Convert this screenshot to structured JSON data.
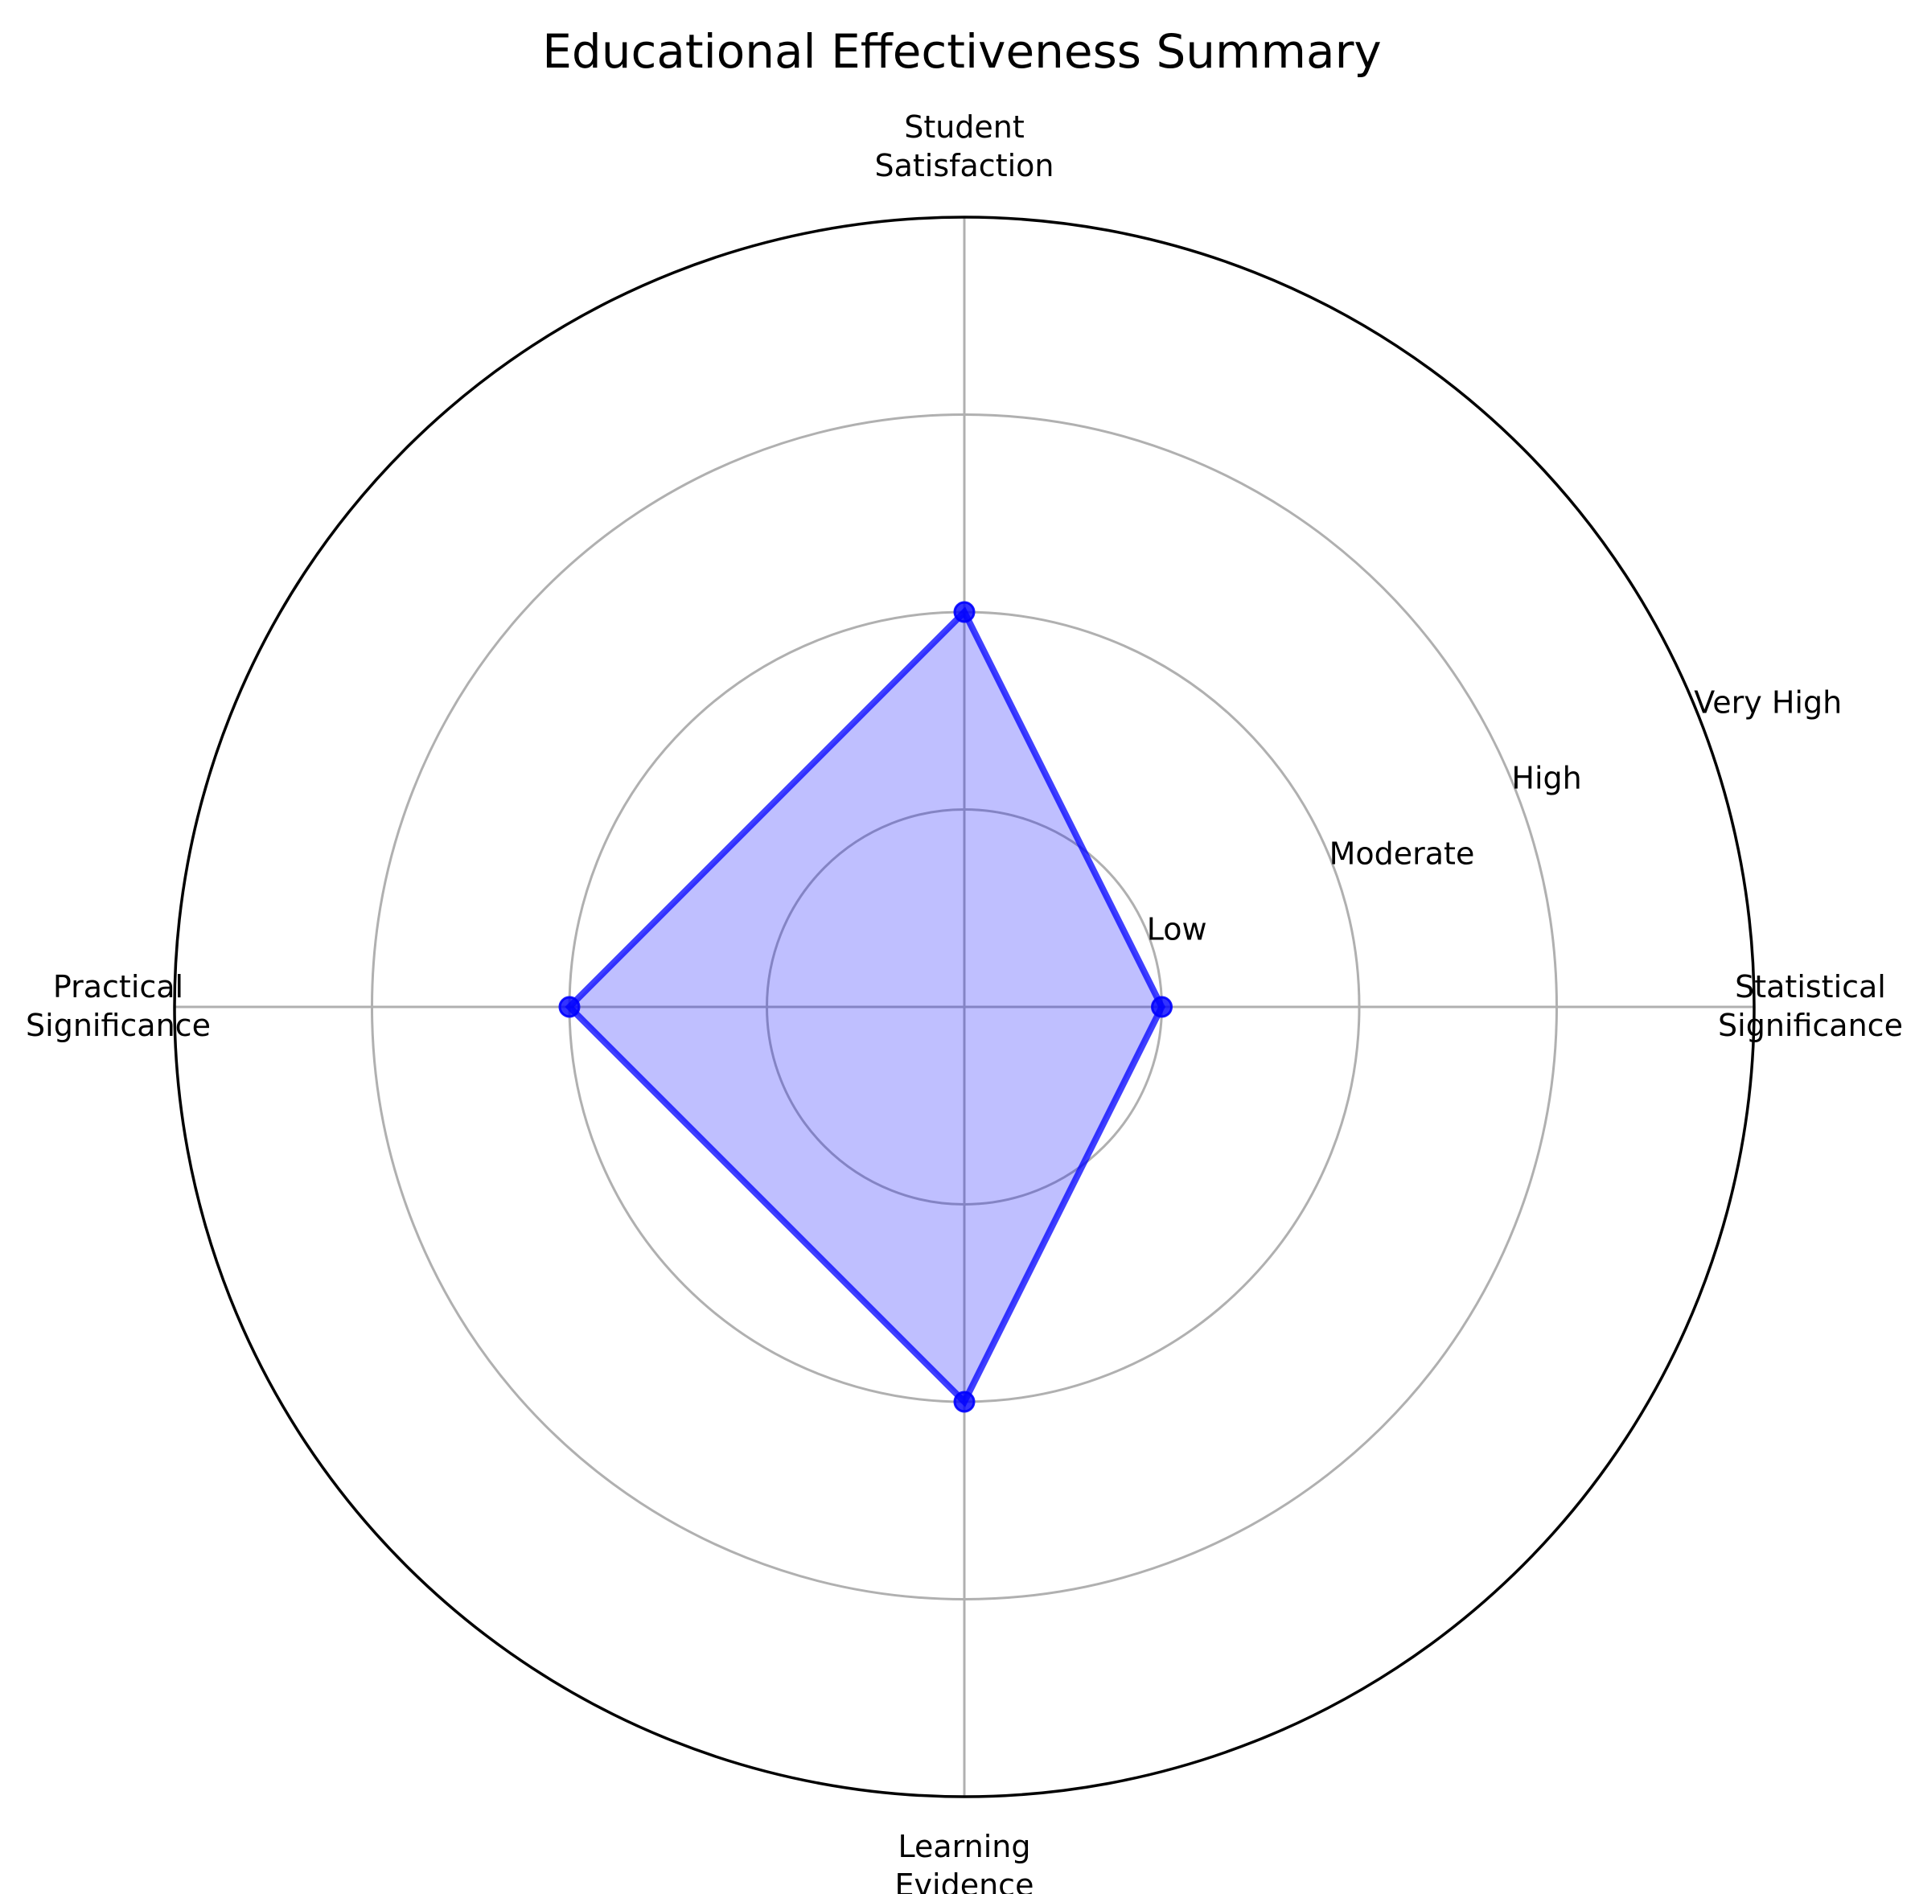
{
  "chart_data": {
    "type": "radar",
    "title": "Educational Effectiveness Summary",
    "categories": [
      [
        "Statistical",
        "Significance"
      ],
      [
        "Student",
        "Satisfaction"
      ],
      [
        "Practical",
        "Significance"
      ],
      [
        "Learning",
        "Evidence"
      ]
    ],
    "radial_tick_labels": [
      "Low",
      "Moderate",
      "High",
      "Very High"
    ],
    "rlim": [
      0,
      4
    ],
    "series": [
      {
        "values": [
          1,
          2,
          2,
          2
        ],
        "color": "#0000ff"
      }
    ],
    "grid": true,
    "legend": "none"
  }
}
